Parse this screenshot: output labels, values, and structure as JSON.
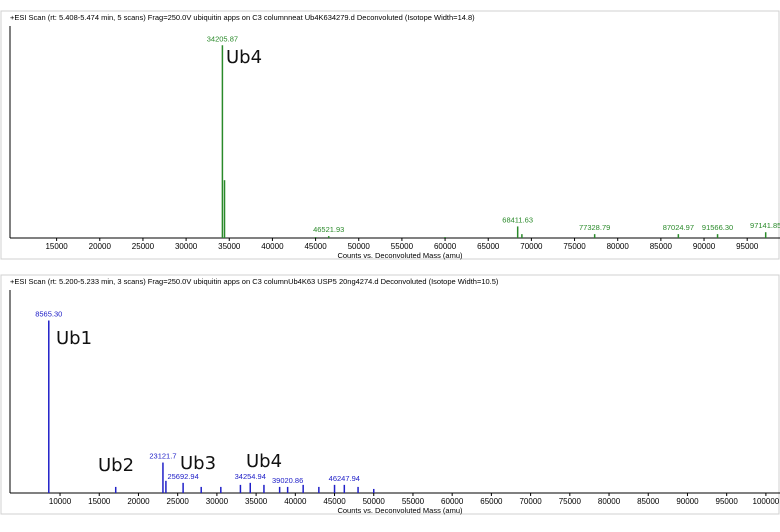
{
  "chart_data": [
    {
      "type": "stem",
      "title": "+ESI Scan (rt: 5.408-5.474 min, 5 scans) Frag=250.0V ubiquitin apps on C3 columnneat Ub4K634279.d  Deconvoluted (Isotope Width=14.8)",
      "x_label": "Counts vs. Deconvoluted Mass (amu)",
      "color": "#2a8a2a",
      "peaks": {
        "x": [
          34205.87,
          46521.93,
          68411.63,
          77328.79,
          87024.97,
          {
            "value": 91566.3,
            "label": "91566.30"
          },
          97141.85
        ],
        "values": [
          1.0,
          0.01,
          0.06,
          0.02,
          0.02,
          0.02,
          0.03
        ]
      },
      "minor_peaks": {
        "x": [
          34450,
          68900,
          45000,
          60000
        ],
        "values": [
          0.3,
          0.02,
          0.005,
          0.005
        ]
      },
      "annotations": [
        "Ub4"
      ],
      "xlim": [
        9600,
        98800
      ],
      "ylim": [
        0,
        1.1
      ],
      "xticks": [
        15000,
        20000,
        25000,
        30000,
        35000,
        40000,
        45000,
        50000,
        55000,
        60000,
        65000,
        70000,
        75000,
        80000,
        85000,
        90000,
        95000
      ]
    },
    {
      "type": "stem",
      "title": "+ESI Scan (rt: 5.200-5.233 min, 3 scans) Frag=250.0V ubiquitin apps on C3 columnUb4K63 USP5 20ng4274.d  Deconvoluted (Isotope Width=10.5)",
      "x_label": "Counts vs. Deconvoluted Mass (amu)",
      "color": "#2020c8",
      "peaks": {
        "x": [
          {
            "value": 8565.3,
            "label": "8565.30"
          },
          23121.7,
          25692.94,
          34254.94,
          39020.86,
          46247.94
        ],
        "values": [
          0.85,
          0.15,
          0.05,
          0.05,
          0.03,
          0.04
        ]
      },
      "minor_peaks": {
        "x": [
          17100,
          23500,
          28000,
          30500,
          33000,
          36000,
          38000,
          41000,
          43000,
          45000,
          48000,
          50000
        ],
        "values": [
          0.03,
          0.06,
          0.03,
          0.03,
          0.04,
          0.04,
          0.03,
          0.04,
          0.03,
          0.04,
          0.03,
          0.02
        ]
      },
      "annotations": [
        "Ub1",
        "Ub2",
        "Ub3",
        "Ub4"
      ],
      "xlim": [
        3620,
        101800
      ],
      "ylim": [
        0,
        1
      ],
      "xticks": [
        10000,
        15000,
        20000,
        25000,
        30000,
        35000,
        40000,
        45000,
        50000,
        55000,
        60000,
        65000,
        70000,
        75000,
        80000,
        85000,
        90000,
        95000,
        100000
      ]
    }
  ]
}
